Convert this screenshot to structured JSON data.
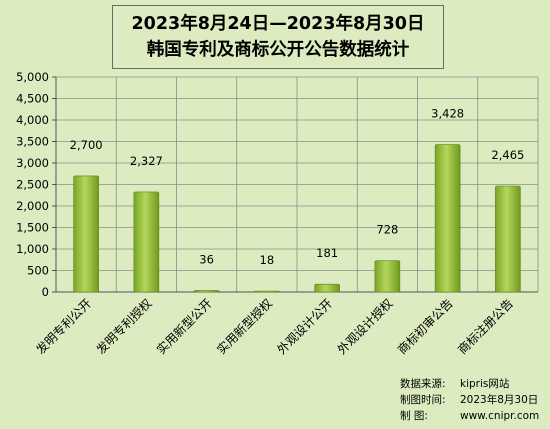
{
  "title": {
    "line1": "2023年8月24日—2023年8月30日",
    "line2": "韩国专利及商标公开公告数据统计"
  },
  "chart_data": {
    "type": "bar",
    "categories": [
      "发明专利公开",
      "发明专利授权",
      "实用新型公开",
      "实用新型授权",
      "外观设计公开",
      "外观设计授权",
      "商标初审公告",
      "商标注册公告"
    ],
    "values": [
      2700,
      2327,
      36,
      18,
      181,
      728,
      3428,
      2465
    ],
    "value_labels": [
      "2,700",
      "2,327",
      "36",
      "18",
      "181",
      "728",
      "3,428",
      "2,465"
    ],
    "ylim": [
      0,
      5000
    ],
    "yticks": [
      0,
      500,
      1000,
      1500,
      2000,
      2500,
      3000,
      3500,
      4000,
      4500,
      5000
    ],
    "ytick_labels": [
      "0",
      "500",
      "1,000",
      "1,500",
      "2,000",
      "2,500",
      "3,000",
      "3,500",
      "4,000",
      "4,500",
      "5,000"
    ],
    "grid": true,
    "bar_color": "#8bb832",
    "background_color": "#dcecc0"
  },
  "footer": {
    "source_key": "数据来源:",
    "source_val": "kipris网站",
    "time_key": "制图时间:",
    "time_val": "2023年8月30日",
    "maker_key": "制    图:",
    "maker_val": "www.cnipr.com"
  }
}
